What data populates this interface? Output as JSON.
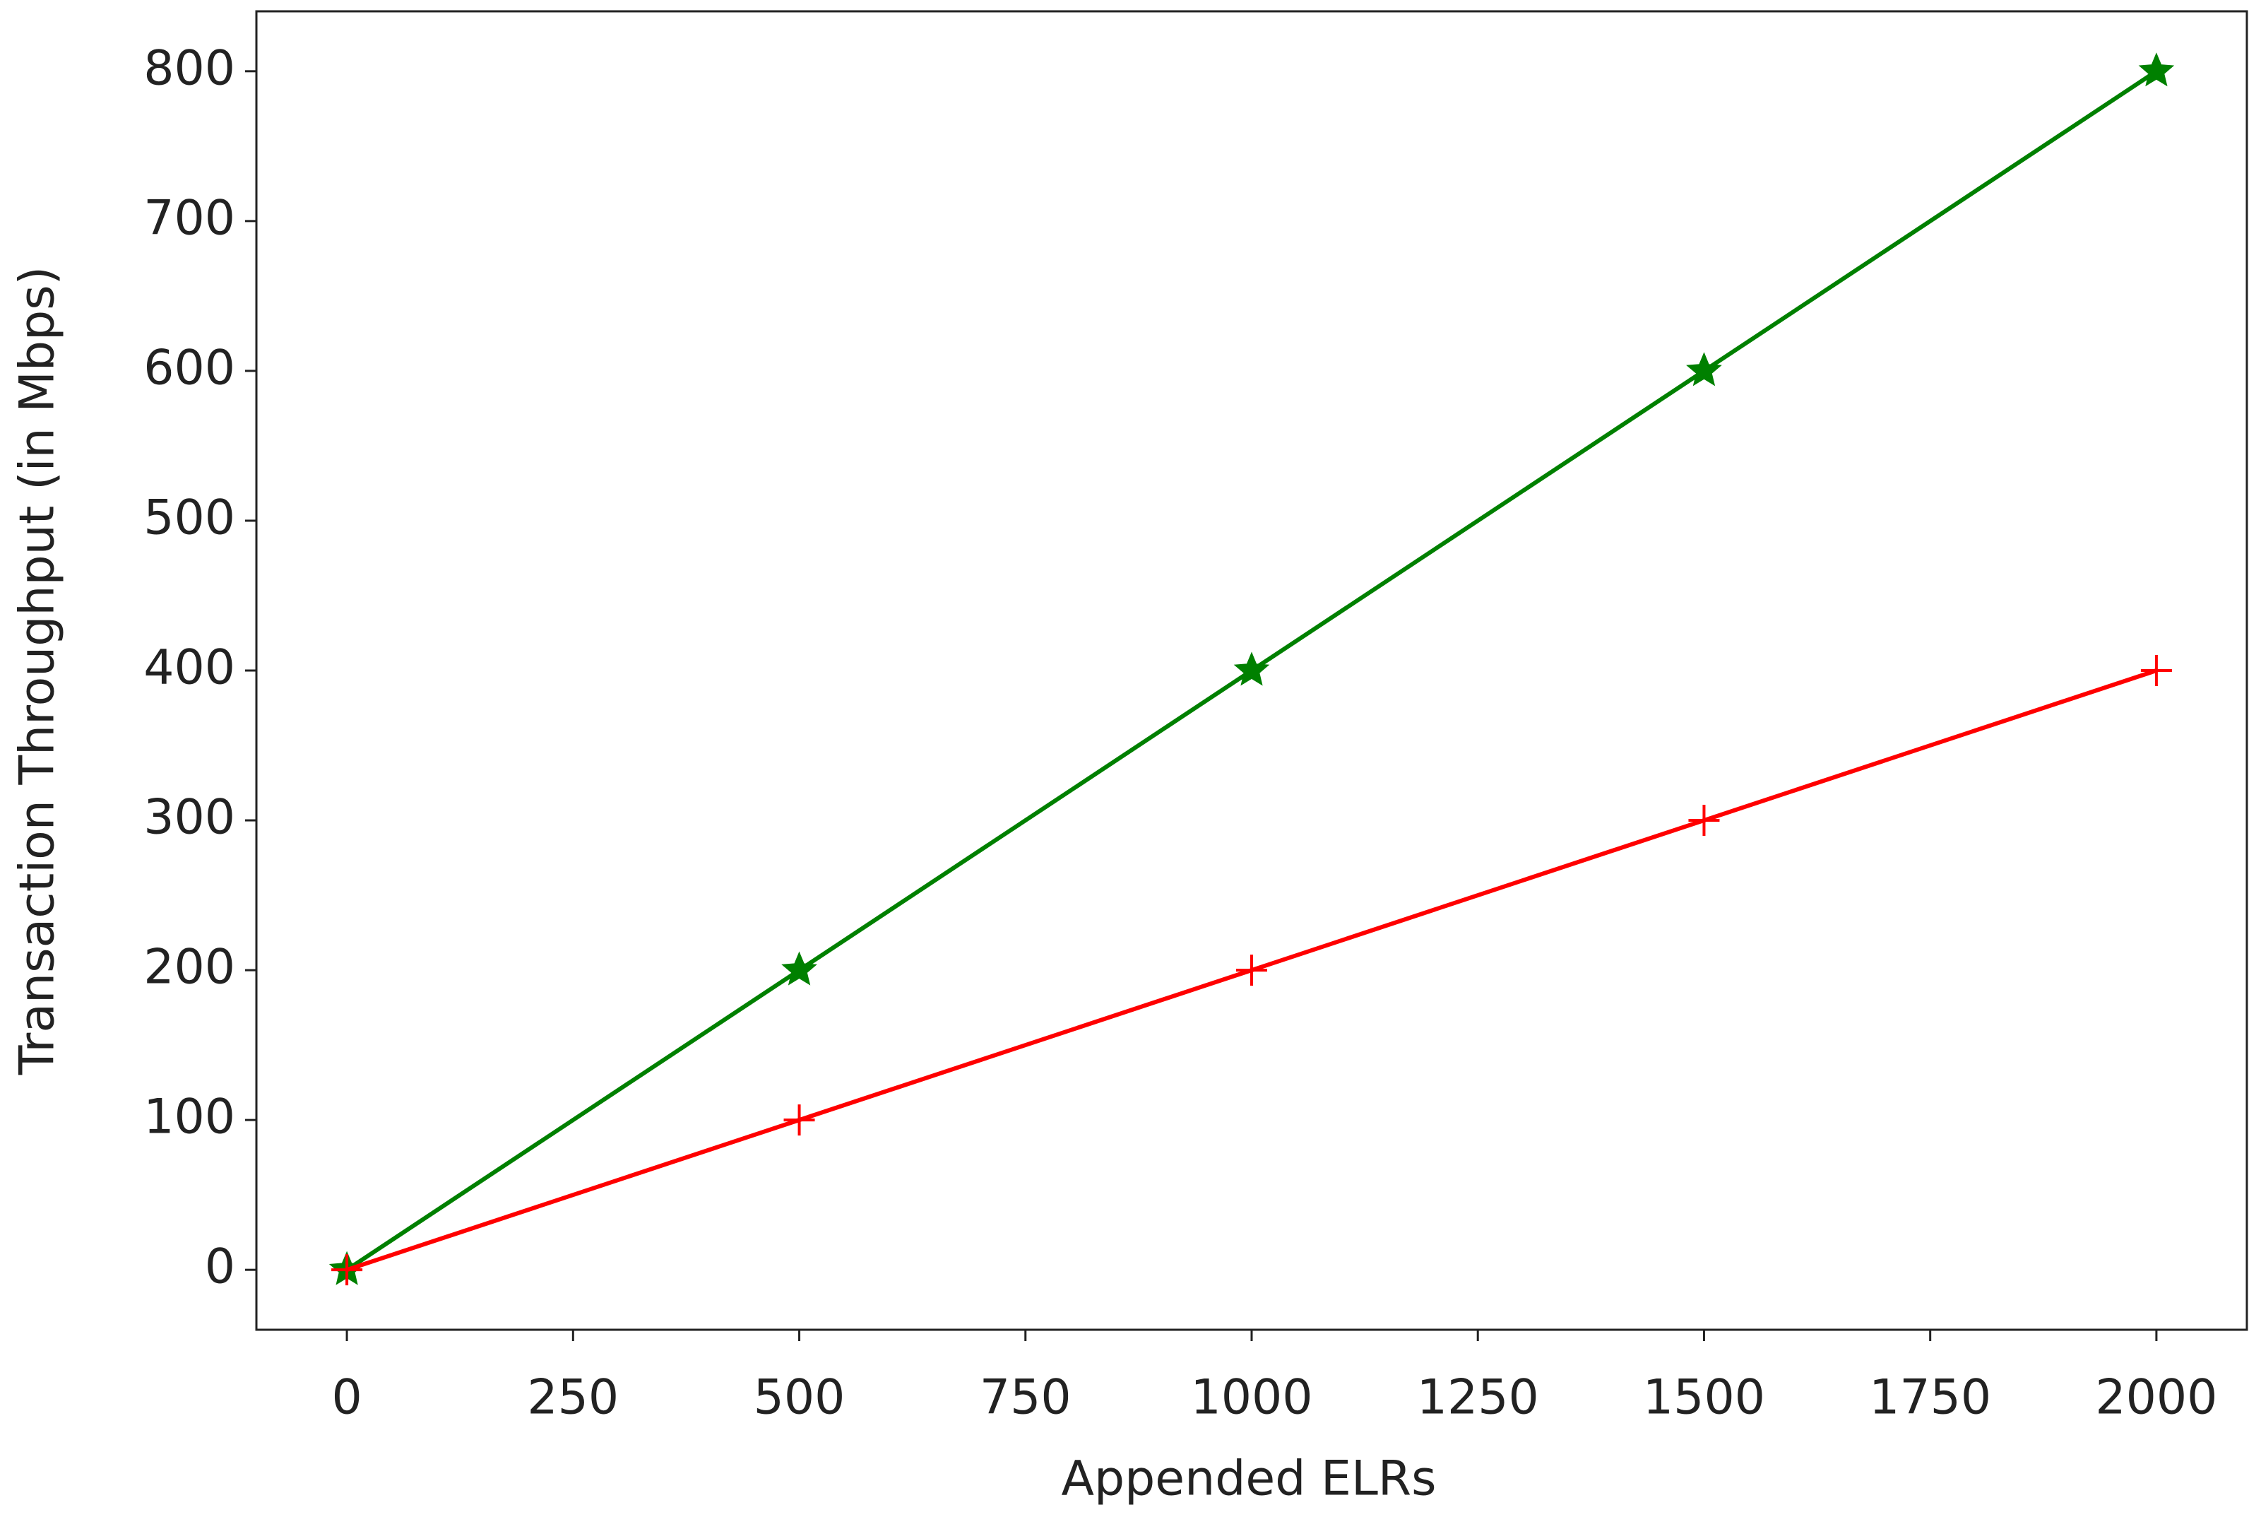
{
  "chart_data": {
    "type": "line",
    "x_label": "Appended ELRs",
    "y_label": "Transaction Throughput (in Mbps)",
    "x": [
      0,
      500,
      1000,
      1500,
      2000
    ],
    "series": [
      {
        "color": "#008000",
        "marker": "*",
        "values": [
          0,
          200,
          400,
          600,
          800
        ]
      },
      {
        "color": "#ff0000",
        "marker": "+",
        "values": [
          0,
          100,
          200,
          300,
          400
        ]
      }
    ],
    "xlim": [
      -100,
      2100
    ],
    "xticks": [
      0,
      250,
      500,
      750,
      1000,
      1250,
      1500,
      1750,
      2000
    ],
    "ylim": [
      -40,
      840
    ],
    "yticks": [
      0,
      100,
      200,
      300,
      400,
      500,
      600,
      700,
      800
    ],
    "grid": false
  }
}
